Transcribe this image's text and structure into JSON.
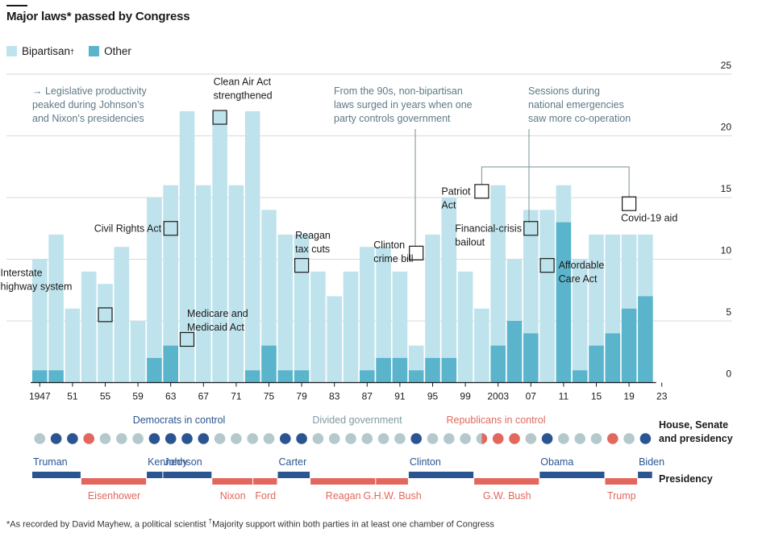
{
  "title": "Major laws* passed by Congress",
  "legend": {
    "bipartisan_label": "Bipartisan",
    "bipartisan_mark": "†",
    "other_label": "Other"
  },
  "colors": {
    "bipartisan": "#bfe3ec",
    "other": "#5ab4cc",
    "democrat": "#2b5591",
    "republican": "#e2685e",
    "divided": "#b5c9cd",
    "annotation_text": "#5d7a86"
  },
  "chart_data": {
    "type": "bar",
    "stacked": true,
    "ylim": [
      0,
      25
    ],
    "yticks": [
      0,
      5,
      10,
      15,
      20,
      25
    ],
    "x_tick_labels": [
      "1947",
      "51",
      "55",
      "59",
      "63",
      "67",
      "71",
      "75",
      "79",
      "83",
      "87",
      "91",
      "95",
      "99",
      "2003",
      "07",
      "11",
      "15",
      "19",
      "23"
    ],
    "sessions": [
      1947,
      1949,
      1951,
      1953,
      1955,
      1957,
      1959,
      1961,
      1963,
      1965,
      1967,
      1969,
      1971,
      1973,
      1975,
      1977,
      1979,
      1981,
      1983,
      1985,
      1987,
      1989,
      1991,
      1993,
      1995,
      1997,
      1999,
      2001,
      2003,
      2005,
      2007,
      2009,
      2011,
      2013,
      2015,
      2017,
      2019,
      2021
    ],
    "series": [
      {
        "name": "Bipartisan",
        "values": [
          9,
          11,
          6,
          9,
          8,
          11,
          5,
          13,
          13,
          22,
          16,
          22,
          16,
          21,
          11,
          11,
          11,
          9,
          7,
          9,
          10,
          9,
          7,
          2,
          10,
          13,
          9,
          6,
          13,
          5,
          10,
          14,
          3,
          9,
          9,
          8,
          6,
          5
        ]
      },
      {
        "name": "Other",
        "values": [
          1,
          1,
          0,
          0,
          0,
          0,
          0,
          2,
          3,
          0,
          0,
          0,
          0,
          1,
          3,
          1,
          1,
          0,
          0,
          0,
          1,
          2,
          2,
          1,
          2,
          2,
          0,
          0,
          3,
          5,
          4,
          0,
          13,
          1,
          3,
          4,
          6,
          7
        ]
      }
    ],
    "xlabel": "",
    "ylabel": ""
  },
  "annotations": {
    "productivity_note": [
      "→ Legislative productivity",
      "peaked during Johnson’s",
      "and Nixon’s presidencies"
    ],
    "nineties_note": [
      "From the 90s, non-bipartisan",
      "laws surged in years when one",
      "party controls government"
    ],
    "emergency_note": [
      "Sessions during",
      "national emergencies",
      "saw more co-operation"
    ],
    "laws": [
      {
        "session": 1955,
        "level": 5.5,
        "lines": [
          "Interstate",
          "highway system"
        ]
      },
      {
        "session": 1963,
        "level": 12.5,
        "lines": [
          "Civil Rights Act"
        ]
      },
      {
        "session": 1965,
        "level": 3.5,
        "lines": [
          "Medicare and",
          "Medicaid Act"
        ]
      },
      {
        "session": 1969,
        "level": 21.5,
        "lines": [
          "Clean Air Act",
          "strengthened"
        ]
      },
      {
        "session": 1979,
        "level": 9.5,
        "lines": [
          "Reagan",
          "tax cuts"
        ]
      },
      {
        "session": 1993,
        "level": 10.5,
        "lines": [
          "Clinton",
          "crime bill"
        ]
      },
      {
        "session": 2001,
        "level": 15.5,
        "lines": [
          "Patriot",
          "Act"
        ]
      },
      {
        "session": 2007,
        "level": 12.5,
        "lines": [
          "Financial-crisis",
          "bailout"
        ]
      },
      {
        "session": 2009,
        "level": 9.5,
        "lines": [
          "Affordable",
          "Care Act"
        ]
      },
      {
        "session": 2019,
        "level": 14.5,
        "lines": [
          "Covid-19 aid"
        ]
      }
    ]
  },
  "control": {
    "label_line1": "House, Senate",
    "label_line2": "and presidency",
    "democrats_label": "Democrats in control",
    "divided_label": "Divided government",
    "republicans_label": "Republicans in control",
    "dots": [
      "div",
      "dem",
      "dem",
      "rep",
      "div",
      "div",
      "div",
      "dem",
      "dem",
      "dem",
      "dem",
      "div",
      "div",
      "div",
      "div",
      "dem",
      "dem",
      "div",
      "div",
      "div",
      "div",
      "div",
      "div",
      "dem",
      "div",
      "div",
      "div",
      "split",
      "rep",
      "rep",
      "div",
      "dem",
      "div",
      "div",
      "div",
      "rep",
      "div",
      "dem"
    ]
  },
  "presidency": {
    "label": "Presidency",
    "terms": [
      {
        "name": "Truman",
        "party": "dem",
        "start": 1947,
        "end": 1953,
        "label_pos": "above"
      },
      {
        "name": "Eisenhower",
        "party": "rep",
        "start": 1953,
        "end": 1961,
        "label_pos": "below"
      },
      {
        "name": "Kennedy",
        "party": "dem",
        "start": 1961,
        "end": 1963,
        "label_pos": "above"
      },
      {
        "name": "Johnson",
        "party": "dem",
        "start": 1963,
        "end": 1969,
        "label_pos": "above"
      },
      {
        "name": "Nixon",
        "party": "rep",
        "start": 1969,
        "end": 1974,
        "label_pos": "below"
      },
      {
        "name": "Ford",
        "party": "rep",
        "start": 1974,
        "end": 1977,
        "label_pos": "below"
      },
      {
        "name": "Carter",
        "party": "dem",
        "start": 1977,
        "end": 1981,
        "label_pos": "above"
      },
      {
        "name": "Reagan",
        "party": "rep",
        "start": 1981,
        "end": 1989,
        "label_pos": "below"
      },
      {
        "name": "G.H.W. Bush",
        "party": "rep",
        "start": 1989,
        "end": 1993,
        "label_pos": "below"
      },
      {
        "name": "Clinton",
        "party": "dem",
        "start": 1993,
        "end": 2001,
        "label_pos": "above"
      },
      {
        "name": "G.W. Bush",
        "party": "rep",
        "start": 2001,
        "end": 2009,
        "label_pos": "below"
      },
      {
        "name": "Obama",
        "party": "dem",
        "start": 2009,
        "end": 2017,
        "label_pos": "above"
      },
      {
        "name": "Trump",
        "party": "rep",
        "start": 2017,
        "end": 2021,
        "label_pos": "below"
      },
      {
        "name": "Biden",
        "party": "dem",
        "start": 2021,
        "end": 2023,
        "label_pos": "above"
      }
    ]
  },
  "footnote": {
    "part1": "*As recorded by David Mayhew, a political scientist ",
    "mark": "†",
    "part2": "Majority support within both parties in at least one chamber of Congress"
  }
}
